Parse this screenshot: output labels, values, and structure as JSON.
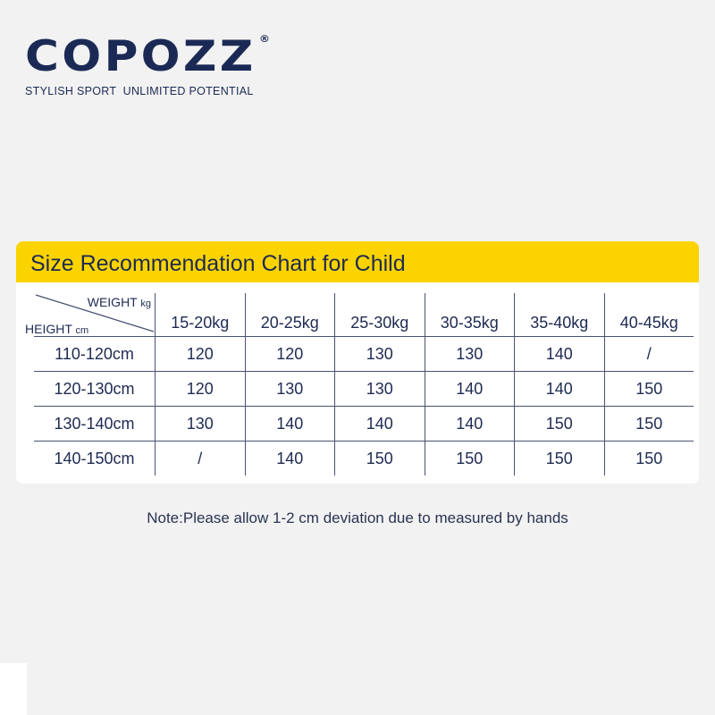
{
  "brand": {
    "logo": "COPOZZ",
    "registered": "®",
    "tagline": "STYLISH SPORT  UNLIMITED POTENTIAL"
  },
  "chart": {
    "title": "Size Recommendation Chart for Child",
    "corner_weight_label": "WEIGHT",
    "corner_weight_unit": "kg",
    "corner_height_label": "HEIGHT",
    "corner_height_unit": "cm",
    "weights": [
      "15-20kg",
      "20-25kg",
      "25-30kg",
      "30-35kg",
      "35-40kg",
      "40-45kg"
    ],
    "rows": [
      {
        "height": "110-120cm",
        "sizes": [
          "120",
          "120",
          "130",
          "130",
          "140",
          "/"
        ]
      },
      {
        "height": "120-130cm",
        "sizes": [
          "120",
          "130",
          "130",
          "140",
          "140",
          "150"
        ]
      },
      {
        "height": "130-140cm",
        "sizes": [
          "130",
          "140",
          "140",
          "140",
          "150",
          "150"
        ]
      },
      {
        "height": "140-150cm",
        "sizes": [
          "/",
          "140",
          "150",
          "150",
          "150",
          "150"
        ]
      }
    ],
    "colors": {
      "title_bar": "#fbd400",
      "text": "#1e2a52",
      "card": "#ffffff",
      "page": "#f2f2f2"
    }
  },
  "note": "Note:Please allow 1-2 cm deviation due to measured by hands"
}
